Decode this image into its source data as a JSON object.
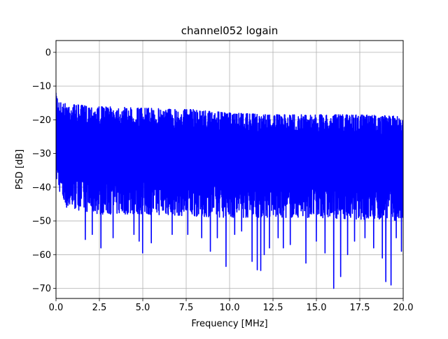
{
  "chart_data": {
    "type": "line",
    "title": "channel052 logain",
    "xlabel": "Frequency [MHz]",
    "ylabel": "PSD [dB]",
    "xlim": [
      0,
      20
    ],
    "ylim": [
      -73,
      3.5
    ],
    "grid": true,
    "series_color": "#0000ff",
    "x_ticks": [
      {
        "value": 0,
        "label": "0.0"
      },
      {
        "value": 2.5,
        "label": "2.5"
      },
      {
        "value": 5,
        "label": "5.0"
      },
      {
        "value": 7.5,
        "label": "7.5"
      },
      {
        "value": 10,
        "label": "10.0"
      },
      {
        "value": 12.5,
        "label": "12.5"
      },
      {
        "value": 15,
        "label": "15.0"
      },
      {
        "value": 17.5,
        "label": "17.5"
      },
      {
        "value": 20,
        "label": "20.0"
      }
    ],
    "y_ticks": [
      {
        "value": 0,
        "label": "0"
      },
      {
        "value": -10,
        "label": "−10"
      },
      {
        "value": -20,
        "label": "−20"
      },
      {
        "value": -30,
        "label": "−30"
      },
      {
        "value": -40,
        "label": "−40"
      },
      {
        "value": -50,
        "label": "−50"
      },
      {
        "value": -60,
        "label": "−60"
      },
      {
        "value": -70,
        "label": "−70"
      }
    ],
    "series": [
      {
        "x_start": 0,
        "x_end": 20,
        "n_points": 1600,
        "upper_envelope": [
          [
            0,
            -12
          ],
          [
            0.3,
            -15
          ],
          [
            2,
            -16
          ],
          [
            5,
            -16.5
          ],
          [
            8,
            -17
          ],
          [
            10,
            -18
          ],
          [
            12.5,
            -18.5
          ],
          [
            15,
            -18.5
          ],
          [
            17.5,
            -18.5
          ],
          [
            20,
            -19
          ]
        ],
        "lower_envelope": [
          [
            0,
            -38
          ],
          [
            0.5,
            -46
          ],
          [
            2.5,
            -48
          ],
          [
            5,
            -48
          ],
          [
            10,
            -49
          ],
          [
            15,
            -49
          ],
          [
            20,
            -50
          ]
        ],
        "dips": [
          [
            1.7,
            -55.5
          ],
          [
            2.1,
            -54
          ],
          [
            2.6,
            -58
          ],
          [
            3.3,
            -55
          ],
          [
            4.5,
            -54
          ],
          [
            4.8,
            -56
          ],
          [
            5.0,
            -59.5
          ],
          [
            5.5,
            -56.5
          ],
          [
            6.7,
            -54
          ],
          [
            7.6,
            -54
          ],
          [
            8.4,
            -55
          ],
          [
            8.9,
            -59
          ],
          [
            9.3,
            -55
          ],
          [
            9.8,
            -63.5
          ],
          [
            10.3,
            -54
          ],
          [
            10.7,
            -53
          ],
          [
            11.3,
            -62
          ],
          [
            11.6,
            -64.5
          ],
          [
            11.8,
            -64.7
          ],
          [
            12.0,
            -60
          ],
          [
            12.3,
            -58
          ],
          [
            12.8,
            -55
          ],
          [
            13.1,
            -58
          ],
          [
            13.5,
            -57
          ],
          [
            14.4,
            -62.5
          ],
          [
            15.0,
            -56
          ],
          [
            15.5,
            -59.5
          ],
          [
            16.0,
            -70
          ],
          [
            16.4,
            -66.5
          ],
          [
            16.8,
            -60
          ],
          [
            17.2,
            -56
          ],
          [
            17.8,
            -55
          ],
          [
            18.3,
            -58
          ],
          [
            18.8,
            -61
          ],
          [
            19.0,
            -68
          ],
          [
            19.3,
            -69
          ],
          [
            19.6,
            -55
          ],
          [
            19.9,
            -59
          ]
        ]
      }
    ]
  }
}
